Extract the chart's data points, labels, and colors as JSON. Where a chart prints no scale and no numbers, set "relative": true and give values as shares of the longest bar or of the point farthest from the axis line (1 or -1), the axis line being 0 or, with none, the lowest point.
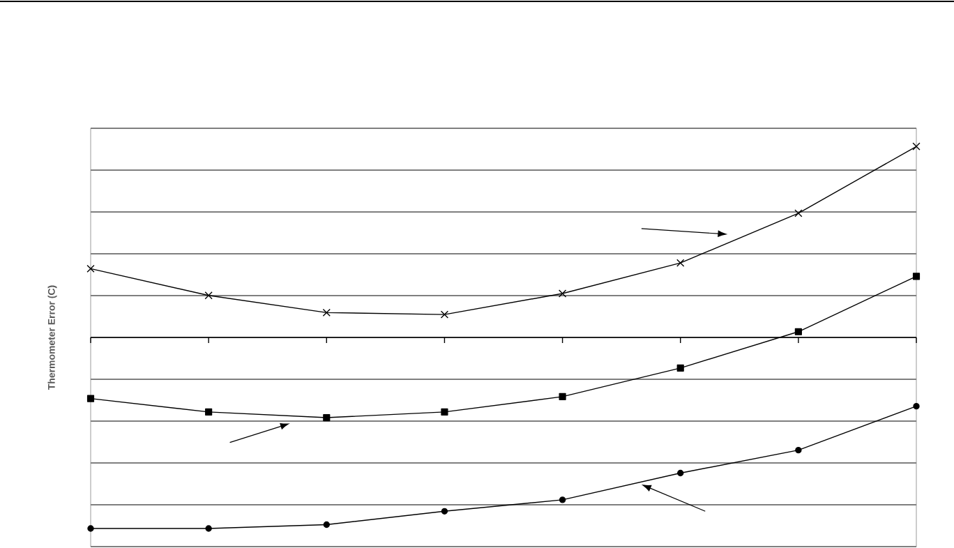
{
  "chart_data": {
    "type": "line",
    "ylabel": "Thermometer Error (C)",
    "relative": true,
    "grid": "y",
    "categories": [
      null,
      null,
      null,
      null,
      null,
      null,
      null,
      null
    ],
    "series": [
      {
        "color": "#000000",
        "marker": "cross",
        "values": [
          0.36,
          0.22,
          0.13,
          0.12,
          0.23,
          0.39,
          0.65,
          1.0
        ]
      },
      {
        "color": "#000000",
        "marker": "square",
        "values": [
          -0.32,
          -0.39,
          -0.42,
          -0.39,
          -0.31,
          -0.16,
          0.03,
          0.32
        ]
      },
      {
        "color": "#000000",
        "marker": "circle",
        "values": [
          -1.0,
          -1.0,
          -0.98,
          -0.91,
          -0.85,
          -0.71,
          -0.59,
          -0.36
        ]
      }
    ]
  }
}
